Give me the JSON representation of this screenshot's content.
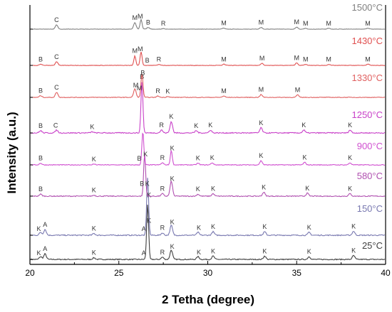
{
  "chart_data": {
    "type": "line",
    "xlabel": "2 Tetha (degree)",
    "ylabel": "Intensity (a.u.)",
    "xlim": [
      20,
      40
    ],
    "x_ticks": [
      "20",
      "25",
      "30",
      "35",
      "40"
    ],
    "grid": false,
    "series": [
      {
        "name": "25°C",
        "color": "#404040",
        "peaks": [
          [
            20.6,
            0.05
          ],
          [
            20.85,
            0.1
          ],
          [
            23.6,
            0.03
          ],
          [
            26.62,
            1.0
          ],
          [
            27.45,
            0.04
          ],
          [
            27.95,
            0.17
          ],
          [
            29.45,
            0.05
          ],
          [
            30.3,
            0.06
          ],
          [
            33.2,
            0.06
          ],
          [
            35.7,
            0.05
          ],
          [
            38.2,
            0.07
          ]
        ],
        "labels": [
          [
            "K",
            20.5
          ],
          [
            "A",
            20.85
          ],
          [
            "K",
            23.6
          ],
          [
            "A",
            26.4
          ],
          [
            "K",
            26.7
          ],
          [
            "R",
            27.45
          ],
          [
            "K",
            28.0
          ],
          [
            "K",
            29.5
          ],
          [
            "K",
            30.3
          ],
          [
            "K",
            33.2
          ],
          [
            "K",
            35.7
          ],
          [
            "K",
            38.2
          ]
        ]
      },
      {
        "name": "150°C",
        "color": "#7878b0",
        "peaks": [
          [
            20.6,
            0.05
          ],
          [
            20.85,
            0.1
          ],
          [
            23.6,
            0.03
          ],
          [
            26.62,
            1.0
          ],
          [
            27.45,
            0.04
          ],
          [
            27.95,
            0.17
          ],
          [
            29.45,
            0.05
          ],
          [
            30.3,
            0.06
          ],
          [
            33.2,
            0.06
          ],
          [
            35.7,
            0.05
          ],
          [
            38.2,
            0.07
          ]
        ],
        "labels": [
          [
            "K",
            20.5
          ],
          [
            "A",
            20.85
          ],
          [
            "K",
            23.6
          ],
          [
            "A",
            26.4
          ],
          [
            "K",
            26.7
          ],
          [
            "R",
            27.45
          ],
          [
            "K",
            28.0
          ],
          [
            "K",
            29.5
          ],
          [
            "K",
            30.3
          ],
          [
            "K",
            33.2
          ],
          [
            "K",
            35.7
          ],
          [
            "K",
            38.2
          ]
        ]
      },
      {
        "name": "580°C",
        "color": "#b050b0",
        "peaks": [
          [
            20.6,
            0.04
          ],
          [
            23.6,
            0.02
          ],
          [
            26.45,
            0.85
          ],
          [
            27.45,
            0.05
          ],
          [
            27.95,
            0.3
          ],
          [
            29.45,
            0.04
          ],
          [
            30.3,
            0.05
          ],
          [
            33.15,
            0.08
          ],
          [
            35.6,
            0.06
          ],
          [
            38.0,
            0.05
          ]
        ],
        "labels": [
          [
            "B",
            20.6
          ],
          [
            "K",
            23.6
          ],
          [
            "B",
            26.3
          ],
          [
            "K",
            26.6
          ],
          [
            "R",
            27.45
          ],
          [
            "K",
            28.0
          ],
          [
            "K",
            29.45
          ],
          [
            "K",
            30.3
          ],
          [
            "K",
            33.15
          ],
          [
            "K",
            35.6
          ],
          [
            "K",
            38.0
          ]
        ]
      },
      {
        "name": "900°C",
        "color": "#d050d0",
        "peaks": [
          [
            20.6,
            0.04
          ],
          [
            23.6,
            0.02
          ],
          [
            26.35,
            0.8
          ],
          [
            27.45,
            0.05
          ],
          [
            27.95,
            0.35
          ],
          [
            29.45,
            0.04
          ],
          [
            30.25,
            0.05
          ],
          [
            33.0,
            0.1
          ],
          [
            35.45,
            0.06
          ],
          [
            38.0,
            0.05
          ]
        ],
        "labels": [
          [
            "B",
            20.6
          ],
          [
            "K",
            23.6
          ],
          [
            "B",
            26.15
          ],
          [
            "K",
            26.5
          ],
          [
            "R",
            27.45
          ],
          [
            "K",
            28.0
          ],
          [
            "K",
            29.45
          ],
          [
            "K",
            30.25
          ],
          [
            "K",
            33.0
          ],
          [
            "K",
            35.45
          ],
          [
            "K",
            38.0
          ]
        ]
      },
      {
        "name": "1250°C",
        "color": "#c840c8",
        "peaks": [
          [
            20.6,
            0.04
          ],
          [
            21.5,
            0.05
          ],
          [
            23.5,
            0.02
          ],
          [
            26.3,
            0.9
          ],
          [
            27.4,
            0.05
          ],
          [
            27.95,
            0.2
          ],
          [
            29.35,
            0.04
          ],
          [
            30.15,
            0.05
          ],
          [
            33.0,
            0.09
          ],
          [
            35.4,
            0.05
          ],
          [
            38.0,
            0.05
          ]
        ],
        "labels": [
          [
            "B",
            20.6
          ],
          [
            "C",
            21.45
          ],
          [
            "K",
            23.5
          ],
          [
            "B",
            26.3
          ],
          [
            "R",
            27.4
          ],
          [
            "K",
            27.95
          ],
          [
            "K",
            29.35
          ],
          [
            "K",
            30.15
          ],
          [
            "K",
            33.0
          ],
          [
            "K",
            35.4
          ],
          [
            "K",
            38.0
          ]
        ]
      },
      {
        "name": "1330°C",
        "color": "#e06060",
        "peaks": [
          [
            20.6,
            0.05
          ],
          [
            21.5,
            0.15
          ],
          [
            25.9,
            0.25
          ],
          [
            26.3,
            0.7
          ],
          [
            27.2,
            0.04
          ],
          [
            27.75,
            0.03
          ],
          [
            30.9,
            0.04
          ],
          [
            33.0,
            0.08
          ],
          [
            35.05,
            0.07
          ]
        ],
        "labels": [
          [
            "B",
            20.6
          ],
          [
            "C",
            21.5
          ],
          [
            "M",
            25.95
          ],
          [
            "M",
            26.15
          ],
          [
            "B",
            26.35
          ],
          [
            "R",
            27.2
          ],
          [
            "K",
            27.75
          ],
          [
            "M",
            30.9
          ],
          [
            "M",
            33.0
          ],
          [
            "M",
            35.05
          ]
        ]
      },
      {
        "name": "1430°C",
        "color": "#e05050",
        "peaks": [
          [
            20.6,
            0.05
          ],
          [
            21.5,
            0.15
          ],
          [
            25.9,
            0.38
          ],
          [
            26.25,
            0.55
          ],
          [
            27.25,
            0.04
          ],
          [
            30.9,
            0.05
          ],
          [
            33.05,
            0.09
          ],
          [
            35.0,
            0.1
          ],
          [
            35.5,
            0.04
          ],
          [
            36.8,
            0.04
          ],
          [
            39.0,
            0.05
          ]
        ],
        "labels": [
          [
            "B",
            20.6
          ],
          [
            "C",
            21.5
          ],
          [
            "M",
            25.9
          ],
          [
            "M",
            26.2
          ],
          [
            "B",
            26.6
          ],
          [
            "R",
            27.25
          ],
          [
            "M",
            30.9
          ],
          [
            "M",
            33.05
          ],
          [
            "M",
            35.0
          ],
          [
            "M",
            35.5
          ],
          [
            "M",
            36.8
          ],
          [
            "M",
            39.0
          ]
        ]
      },
      {
        "name": "1500°C",
        "color": "#808080",
        "peaks": [
          [
            21.5,
            0.2
          ],
          [
            25.9,
            0.3
          ],
          [
            26.25,
            0.45
          ],
          [
            26.65,
            0.08
          ],
          [
            27.5,
            0.03
          ],
          [
            30.9,
            0.05
          ],
          [
            33.0,
            0.08
          ],
          [
            35.0,
            0.1
          ],
          [
            35.5,
            0.04
          ],
          [
            36.8,
            0.04
          ],
          [
            39.0,
            0.04
          ]
        ],
        "labels": [
          [
            "C",
            21.5
          ],
          [
            "M",
            25.9
          ],
          [
            "M",
            26.2
          ],
          [
            "B",
            26.65
          ],
          [
            "R",
            27.5
          ],
          [
            "M",
            30.9
          ],
          [
            "M",
            33.0
          ],
          [
            "M",
            35.0
          ],
          [
            "M",
            35.5
          ],
          [
            "M",
            36.8
          ],
          [
            "M",
            39.0
          ]
        ]
      }
    ]
  }
}
